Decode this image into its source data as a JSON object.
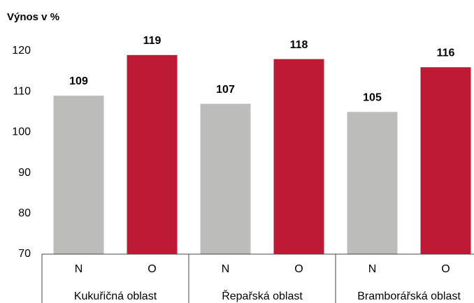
{
  "chart_data": {
    "type": "bar",
    "title": "Výnos v %",
    "groups": [
      "Kukuřičná oblast",
      "Řepařská oblast",
      "Bramborářská oblast"
    ],
    "categories": [
      "N",
      "O",
      "N",
      "O",
      "N",
      "O"
    ],
    "values": [
      109,
      119,
      107,
      118,
      105,
      116
    ],
    "colors": [
      "#bcbcba",
      "#be1a36",
      "#bcbcba",
      "#be1a36",
      "#bcbcba",
      "#be1a36"
    ],
    "ylim": [
      70,
      120
    ],
    "yticks": [
      70,
      80,
      90,
      100,
      110,
      120
    ],
    "grid": false
  }
}
